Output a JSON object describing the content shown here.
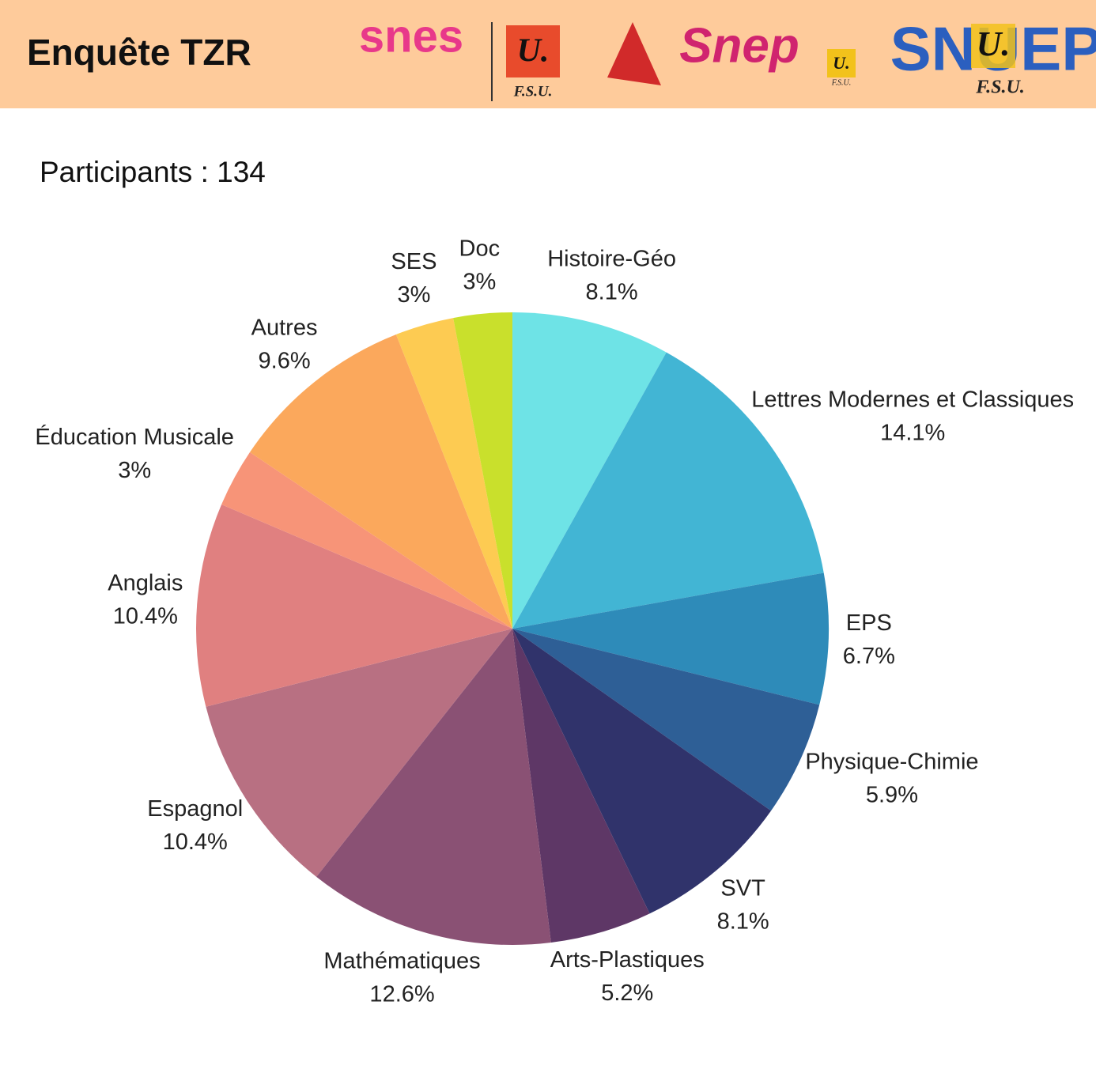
{
  "header": {
    "title": "Enquête TZR",
    "logos": [
      {
        "name": "snes",
        "badge": "U.",
        "sub": "F.S.U."
      },
      {
        "name": "Snep",
        "badge": "U.",
        "sub": "F.S.U."
      },
      {
        "name": "SNUEP",
        "badge": "U.",
        "sub": "F.S.U."
      }
    ]
  },
  "chart_data": {
    "type": "pie",
    "subtitle": "Participants : 134",
    "categories": [
      "Histoire-Géo",
      "Lettres Modernes et Classiques",
      "EPS",
      "Physique-Chimie",
      "SVT",
      "Arts-Plastiques",
      "Mathématiques",
      "Espagnol",
      "Anglais",
      "Éducation Musicale",
      "Autres",
      "SES",
      "Doc"
    ],
    "values": [
      8.1,
      14.1,
      6.7,
      5.9,
      8.1,
      5.2,
      12.6,
      10.4,
      10.4,
      3,
      9.6,
      3,
      3
    ],
    "value_labels": [
      "8.1%",
      "14.1%",
      "6.7%",
      "5.9%",
      "8.1%",
      "5.2%",
      "12.6%",
      "10.4%",
      "10.4%",
      "3%",
      "9.6%",
      "3%",
      "3%"
    ],
    "colors": [
      "#6ee3e6",
      "#42b5d4",
      "#2e8bb9",
      "#2e5f96",
      "#30336b",
      "#5e3766",
      "#8a5174",
      "#b87082",
      "#e08080",
      "#f79478",
      "#fba85c",
      "#fdcb52",
      "#c9e02c"
    ]
  }
}
